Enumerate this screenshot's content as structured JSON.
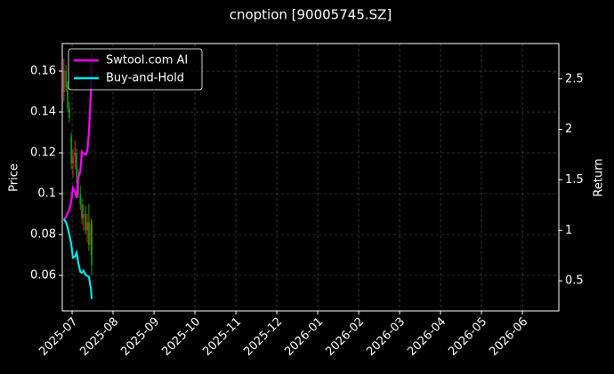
{
  "chart_data": {
    "type": "candlestick",
    "title": "cnoption [90005745.SZ]",
    "ylabel": "Price",
    "y2label": "Return",
    "x": [
      -0.2,
      -0.15,
      -0.11,
      -0.07,
      -0.02,
      0.02,
      0.07,
      0.11,
      0.15,
      0.2,
      0.24,
      0.28,
      0.33,
      0.37,
      0.41,
      0.46,
      0.48
    ],
    "open": [
      0.15,
      0.16,
      0.152,
      0.142,
      0.128,
      0.115,
      0.118,
      0.12,
      0.108,
      0.1,
      0.095,
      0.088,
      0.09,
      0.082,
      0.086,
      0.075,
      0.085
    ],
    "high": [
      0.166,
      0.163,
      0.155,
      0.145,
      0.13,
      0.122,
      0.126,
      0.122,
      0.112,
      0.104,
      0.098,
      0.095,
      0.094,
      0.09,
      0.095,
      0.088,
      0.087
    ],
    "low": [
      0.145,
      0.15,
      0.14,
      0.135,
      0.112,
      0.108,
      0.112,
      0.105,
      0.098,
      0.092,
      0.085,
      0.082,
      0.08,
      0.076,
      0.072,
      0.07,
      0.06
    ],
    "close": [
      0.16,
      0.152,
      0.142,
      0.137,
      0.115,
      0.118,
      0.12,
      0.108,
      0.1,
      0.095,
      0.088,
      0.09,
      0.082,
      0.086,
      0.075,
      0.085,
      0.065
    ],
    "up_color": "#e03030",
    "down_color": "#10a010",
    "series": [
      {
        "name": "Swtool.com AI",
        "color": "#ff00ff",
        "axis": "y2",
        "values": [
          1.11,
          1.13,
          1.17,
          1.2,
          1.29,
          1.42,
          1.38,
          1.32,
          1.52,
          1.58,
          1.78,
          1.76,
          1.75,
          1.78,
          1.96,
          2.39,
          2.75
        ]
      },
      {
        "name": "Buy-and-Hold",
        "color": "#00e5ee",
        "axis": "y2",
        "values": [
          1.11,
          1.08,
          1.03,
          0.96,
          0.86,
          0.73,
          0.74,
          0.78,
          0.68,
          0.59,
          0.58,
          0.6,
          0.56,
          0.55,
          0.54,
          0.42,
          0.32
        ]
      }
    ],
    "xlim": [
      -0.24,
      11.89
    ],
    "xticks": [
      {
        "value": 0,
        "label": "2025-07"
      },
      {
        "value": 1,
        "label": "2025-08"
      },
      {
        "value": 2,
        "label": "2025-09"
      },
      {
        "value": 3,
        "label": "2025-10"
      },
      {
        "value": 4,
        "label": "2025-11"
      },
      {
        "value": 5,
        "label": "2025-12"
      },
      {
        "value": 6,
        "label": "2026-01"
      },
      {
        "value": 7,
        "label": "2026-02"
      },
      {
        "value": 8,
        "label": "2026-03"
      },
      {
        "value": 9,
        "label": "2026-04"
      },
      {
        "value": 10,
        "label": "2026-05"
      },
      {
        "value": 11,
        "label": "2026-06"
      }
    ],
    "ylim": [
      0.0426,
      0.1735
    ],
    "yticks": [
      0.06,
      0.08,
      0.1,
      0.12,
      0.14,
      0.16
    ],
    "y2lim": [
      0.202,
      2.85
    ],
    "y2ticks": [
      0.5,
      1.0,
      1.5,
      2.0,
      2.5
    ],
    "grid": true,
    "legend": "upper left"
  }
}
